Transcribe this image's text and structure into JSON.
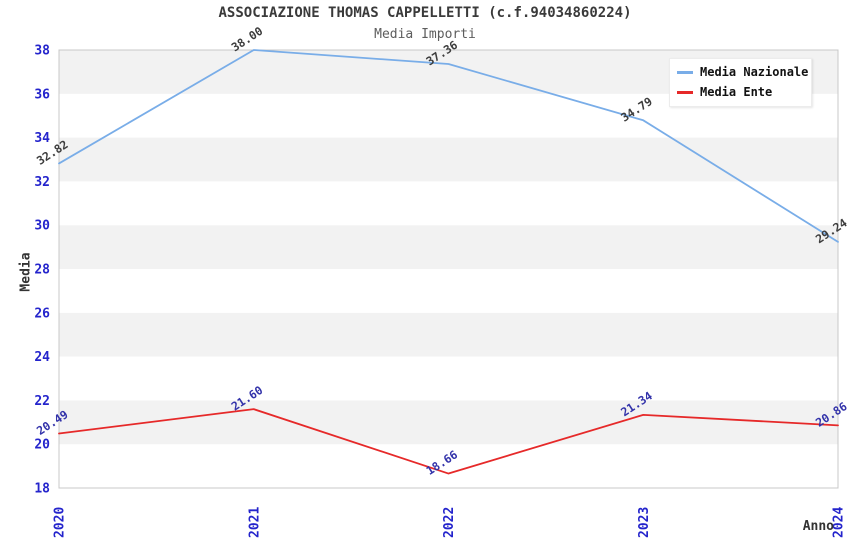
{
  "chart_data": {
    "type": "line",
    "title": "ASSOCIAZIONE THOMAS CAPPELLETTI (c.f.94034860224)",
    "subtitle": "Media Importi",
    "xlabel": "Anno",
    "ylabel": "Media",
    "x": [
      "2020",
      "2021",
      "2022",
      "2023",
      "2024"
    ],
    "series": [
      {
        "name": "Media Nazionale",
        "color": "#79ade8",
        "label_color": "#3d3d3d",
        "values": [
          32.82,
          38.0,
          37.36,
          34.79,
          29.24
        ]
      },
      {
        "name": "Media Ente",
        "color": "#e62929",
        "label_color": "#3333aa",
        "values": [
          20.49,
          21.6,
          18.66,
          21.34,
          20.86
        ]
      }
    ],
    "ylim": [
      18,
      38
    ],
    "ytick_step": 2,
    "value_label_decimals": 2,
    "grid": "alternating-bands",
    "legend_position": "top-right",
    "colors": {
      "tick_label": "#2424cc",
      "band_light": "#ffffff",
      "band_dark": "#f2f2f2",
      "plot_border": "#c8c8c8"
    }
  }
}
